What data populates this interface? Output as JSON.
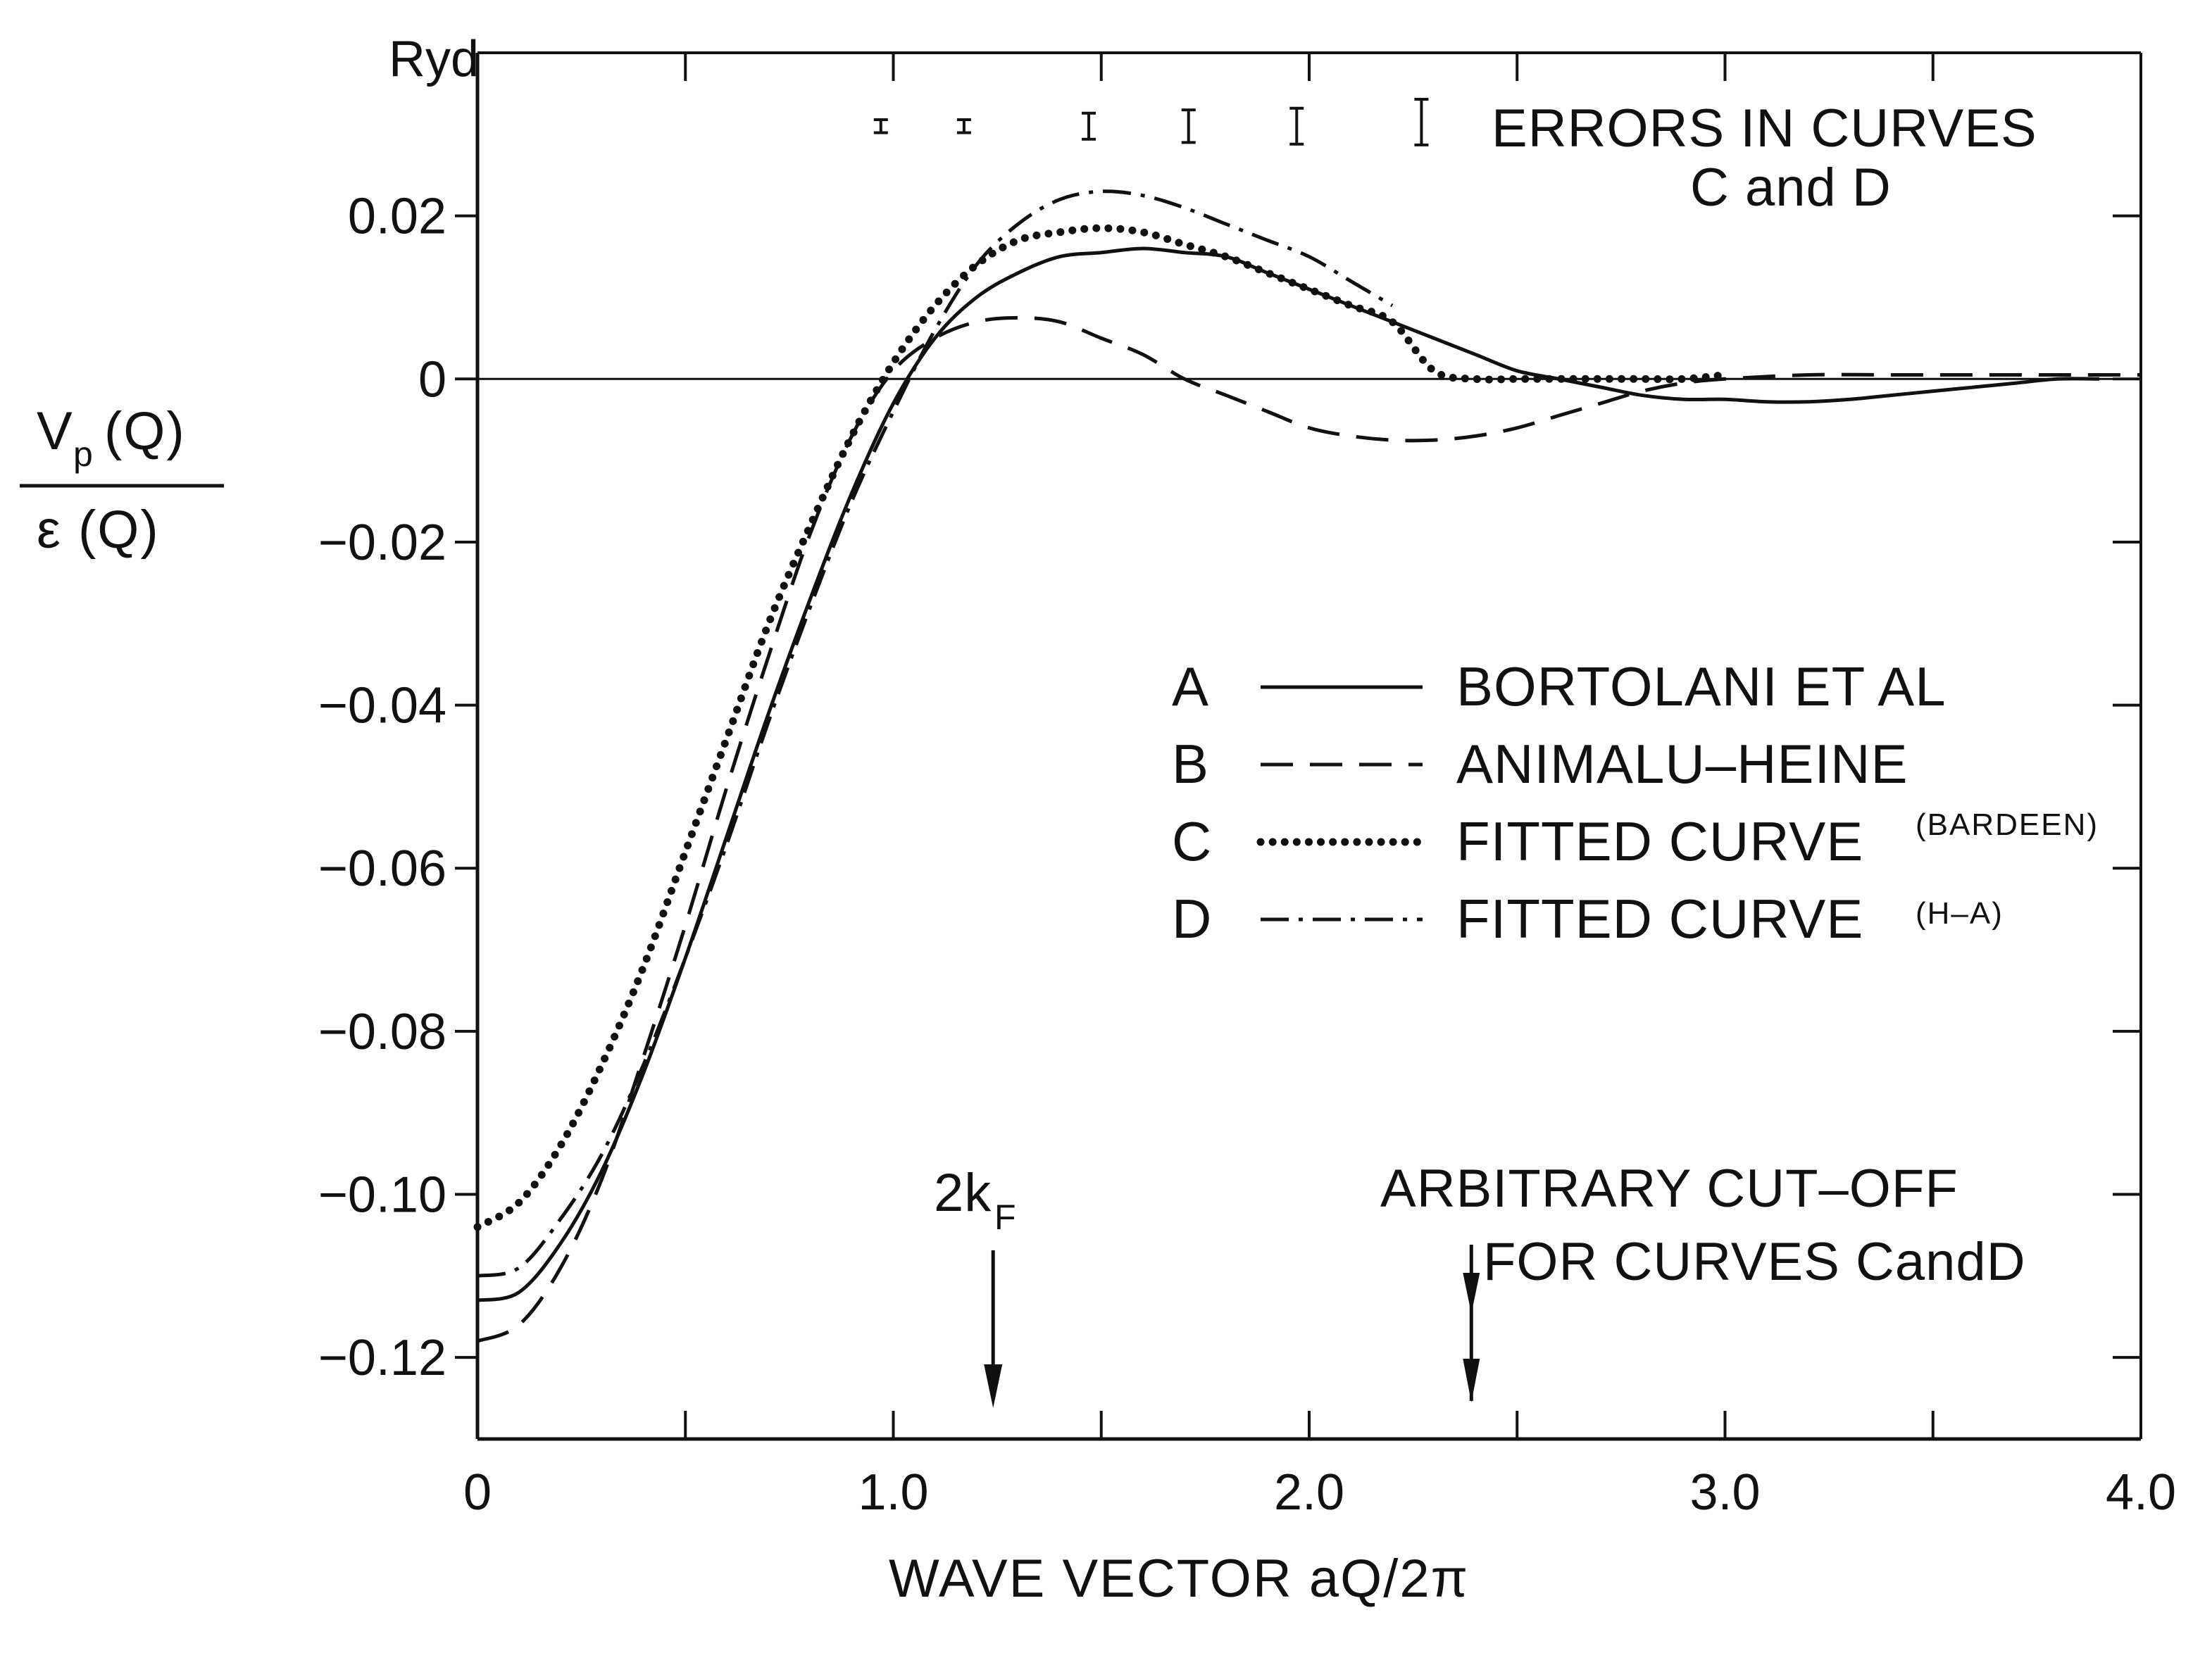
{
  "chart_data": {
    "type": "line",
    "title": "",
    "xlabel": "WAVE VECTOR aQ/2π",
    "ylabel": {
      "numerator": "V",
      "numerator_sub": "p",
      "numerator_arg": "(Q)",
      "denominator": "ε (Q)"
    },
    "y_unit": "Ryd",
    "xlim": [
      0,
      4.0
    ],
    "ylim": [
      -0.13,
      0.04
    ],
    "x_ticks": [
      0,
      1.0,
      2.0,
      3.0,
      4.0
    ],
    "x_tick_labels": [
      "0",
      "1.0",
      "2.0",
      "3.0",
      "4.0"
    ],
    "y_ticks": [
      0.02,
      0,
      -0.02,
      -0.04,
      -0.06,
      -0.08,
      -0.1,
      -0.12
    ],
    "y_tick_labels": [
      "0.02",
      "0",
      "−0.02",
      "−0.04",
      "−0.06",
      "−0.08",
      "−0.10",
      "−0.12"
    ],
    "series": [
      {
        "id": "A",
        "letter": "A",
        "name": "BORTOLANI ET AL",
        "name_suffix": "",
        "style": "solid",
        "x": [
          0,
          0.1,
          0.2,
          0.3,
          0.4,
          0.5,
          0.6,
          0.7,
          0.8,
          0.9,
          1.0,
          1.1,
          1.2,
          1.3,
          1.4,
          1.5,
          1.6,
          1.7,
          1.8,
          1.9,
          2.0,
          2.1,
          2.2,
          2.3,
          2.4,
          2.5,
          2.6,
          2.7,
          2.8,
          2.9,
          3.0,
          3.1,
          3.2,
          3.3,
          3.4,
          3.5,
          3.6,
          3.7,
          3.8,
          3.9
        ],
        "y": [
          -0.113,
          -0.112,
          -0.106,
          -0.097,
          -0.085,
          -0.071,
          -0.056,
          -0.041,
          -0.027,
          -0.014,
          -0.003,
          0.005,
          0.01,
          0.013,
          0.015,
          0.0155,
          0.016,
          0.0155,
          0.015,
          0.013,
          0.011,
          0.009,
          0.007,
          0.005,
          0.003,
          0.001,
          0.0,
          -0.001,
          -0.002,
          -0.0025,
          -0.0025,
          -0.0028,
          -0.0028,
          -0.0025,
          -0.002,
          -0.0015,
          -0.001,
          -0.0005,
          0.0,
          0.0
        ]
      },
      {
        "id": "B",
        "letter": "B",
        "name": "ANIMALU–HEINE",
        "name_suffix": "",
        "style": "dashed",
        "x": [
          0,
          0.1,
          0.2,
          0.3,
          0.4,
          0.5,
          0.6,
          0.7,
          0.8,
          0.9,
          1.0,
          1.1,
          1.2,
          1.3,
          1.4,
          1.5,
          1.6,
          1.7,
          1.8,
          1.9,
          2.0,
          2.1,
          2.2,
          2.3,
          2.4,
          2.5,
          2.6,
          2.7,
          2.8,
          2.9,
          3.0,
          3.2,
          3.4,
          3.6,
          3.8,
          4.0
        ],
        "y": [
          -0.118,
          -0.116,
          -0.109,
          -0.098,
          -0.083,
          -0.067,
          -0.05,
          -0.034,
          -0.019,
          -0.007,
          0.001,
          0.005,
          0.007,
          0.0075,
          0.007,
          0.005,
          0.003,
          0.0,
          -0.002,
          -0.004,
          -0.006,
          -0.007,
          -0.0075,
          -0.0075,
          -0.007,
          -0.006,
          -0.0045,
          -0.003,
          -0.0015,
          -0.0005,
          0.0,
          0.0005,
          0.0005,
          0.0005,
          0.0005,
          0.0005
        ]
      },
      {
        "id": "C",
        "letter": "C",
        "name": "FITTED CURVE",
        "name_suffix": "(BARDEEN)",
        "style": "dotted",
        "x": [
          0,
          0.1,
          0.2,
          0.3,
          0.4,
          0.5,
          0.6,
          0.7,
          0.8,
          0.9,
          1.0,
          1.1,
          1.2,
          1.3,
          1.4,
          1.5,
          1.6,
          1.7,
          1.8,
          1.9,
          2.0,
          2.1,
          2.2,
          2.3,
          2.4,
          2.5,
          2.6,
          2.7,
          2.8,
          2.9,
          3.0
        ],
        "y": [
          -0.104,
          -0.101,
          -0.094,
          -0.084,
          -0.072,
          -0.058,
          -0.044,
          -0.03,
          -0.018,
          -0.007,
          0.002,
          0.009,
          0.014,
          0.017,
          0.018,
          0.0185,
          0.018,
          0.0165,
          0.015,
          0.013,
          0.011,
          0.009,
          0.007,
          0.001,
          0.0,
          0.0,
          0.0,
          0.0,
          0.0,
          0.0,
          0.0005
        ]
      },
      {
        "id": "D",
        "letter": "D",
        "name": "FITTED CURVE",
        "name_suffix": "(H–A)",
        "style": "dashdot",
        "x": [
          0,
          0.1,
          0.2,
          0.3,
          0.4,
          0.5,
          0.6,
          0.7,
          0.8,
          0.9,
          1.0,
          1.1,
          1.2,
          1.3,
          1.4,
          1.5,
          1.6,
          1.7,
          1.8,
          1.9,
          2.0,
          2.1,
          2.2
        ],
        "y": [
          -0.11,
          -0.109,
          -0.103,
          -0.095,
          -0.084,
          -0.071,
          -0.057,
          -0.042,
          -0.028,
          -0.015,
          -0.004,
          0.006,
          0.014,
          0.019,
          0.022,
          0.023,
          0.0225,
          0.021,
          0.019,
          0.017,
          0.015,
          0.012,
          0.009
        ]
      }
    ],
    "error_bars": {
      "label_line1": "ERRORS IN CURVES",
      "label_line2": "C and D",
      "bars": [
        {
          "x": 0.97,
          "center": 0.031,
          "half": 0.0008
        },
        {
          "x": 1.17,
          "center": 0.031,
          "half": 0.0008
        },
        {
          "x": 1.47,
          "center": 0.031,
          "half": 0.0016
        },
        {
          "x": 1.71,
          "center": 0.031,
          "half": 0.002
        },
        {
          "x": 1.97,
          "center": 0.031,
          "half": 0.0022
        },
        {
          "x": 2.27,
          "center": 0.0315,
          "half": 0.0028
        }
      ]
    },
    "annotations": [
      {
        "id": "two-kf",
        "text_main": "2k",
        "text_sub": "F",
        "x": 1.24
      },
      {
        "id": "cutoff",
        "text_line1": "ARBITRARY CUT–OFF",
        "text_line2": "FOR CURVES CandD",
        "x": 2.39
      }
    ]
  }
}
